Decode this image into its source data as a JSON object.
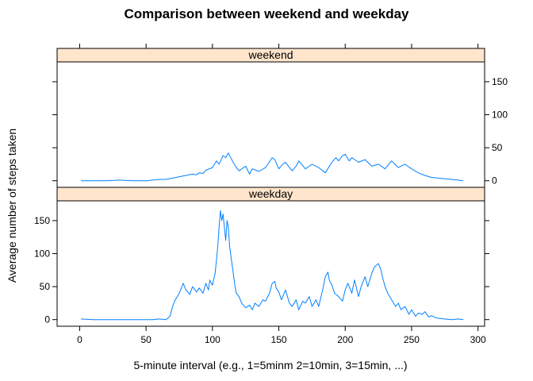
{
  "chart_data": {
    "type": "line",
    "title": "Comparison between weekend and weekday",
    "xlabel": "5-minute interval (e.g., 1=5minm 2=10min, 3=15min, ...)",
    "ylabel": "Average number of steps taken",
    "xlim": [
      -17,
      305
    ],
    "ylim": [
      -10,
      180
    ],
    "x_ticks": [
      0,
      50,
      100,
      150,
      200,
      250,
      300
    ],
    "y_ticks": [
      0,
      50,
      100,
      150
    ],
    "line_color": "#0080ff",
    "strip_color": "#ffe5cc",
    "panels": [
      {
        "name": "weekend",
        "x": [
          1,
          10,
          20,
          30,
          40,
          50,
          55,
          60,
          65,
          70,
          75,
          80,
          85,
          88,
          90,
          93,
          95,
          100,
          103,
          105,
          108,
          110,
          112,
          115,
          118,
          120,
          125,
          128,
          130,
          135,
          140,
          145,
          147,
          150,
          153,
          155,
          160,
          163,
          165,
          170,
          175,
          180,
          185,
          190,
          193,
          195,
          198,
          200,
          203,
          205,
          210,
          215,
          220,
          225,
          230,
          235,
          240,
          245,
          250,
          255,
          260,
          265,
          270,
          275,
          280,
          285,
          289
        ],
        "values": [
          0,
          0,
          0,
          1,
          0,
          0,
          1,
          2,
          2,
          4,
          6,
          8,
          10,
          9,
          12,
          11,
          16,
          20,
          30,
          25,
          38,
          35,
          42,
          30,
          20,
          15,
          22,
          10,
          18,
          14,
          20,
          35,
          32,
          18,
          25,
          28,
          15,
          22,
          30,
          18,
          25,
          20,
          12,
          28,
          35,
          30,
          38,
          40,
          30,
          35,
          28,
          32,
          22,
          25,
          18,
          30,
          20,
          25,
          18,
          12,
          8,
          5,
          4,
          3,
          2,
          1,
          0
        ]
      },
      {
        "name": "weekday",
        "x": [
          1,
          10,
          20,
          30,
          40,
          50,
          55,
          60,
          65,
          68,
          70,
          72,
          75,
          78,
          80,
          83,
          85,
          88,
          90,
          93,
          95,
          97,
          98,
          100,
          102,
          103,
          104,
          105,
          106,
          107,
          108,
          110,
          111,
          112,
          113,
          115,
          117,
          118,
          120,
          122,
          125,
          128,
          130,
          132,
          135,
          138,
          140,
          143,
          145,
          147,
          148,
          150,
          152,
          155,
          158,
          160,
          163,
          165,
          168,
          170,
          173,
          175,
          178,
          180,
          183,
          185,
          187,
          188,
          190,
          192,
          195,
          198,
          200,
          202,
          205,
          207,
          210,
          212,
          215,
          217,
          220,
          222,
          225,
          227,
          228,
          230,
          232,
          235,
          238,
          240,
          242,
          245,
          248,
          250,
          253,
          255,
          258,
          260,
          263,
          265,
          268,
          270,
          275,
          280,
          285,
          289
        ],
        "values": [
          1,
          0,
          0,
          0,
          0,
          0,
          0,
          1,
          0,
          5,
          20,
          30,
          40,
          55,
          45,
          38,
          50,
          42,
          48,
          40,
          55,
          45,
          60,
          52,
          70,
          90,
          110,
          140,
          165,
          150,
          160,
          120,
          150,
          140,
          110,
          80,
          50,
          40,
          35,
          25,
          18,
          22,
          15,
          25,
          20,
          30,
          28,
          40,
          55,
          58,
          48,
          42,
          30,
          45,
          25,
          20,
          30,
          15,
          28,
          25,
          35,
          20,
          30,
          20,
          45,
          65,
          72,
          60,
          52,
          40,
          35,
          28,
          45,
          55,
          40,
          60,
          35,
          50,
          65,
          50,
          70,
          80,
          85,
          75,
          65,
          50,
          40,
          30,
          20,
          25,
          15,
          20,
          8,
          15,
          5,
          10,
          8,
          12,
          4,
          6,
          3,
          2,
          1,
          0,
          1,
          0
        ]
      }
    ]
  }
}
